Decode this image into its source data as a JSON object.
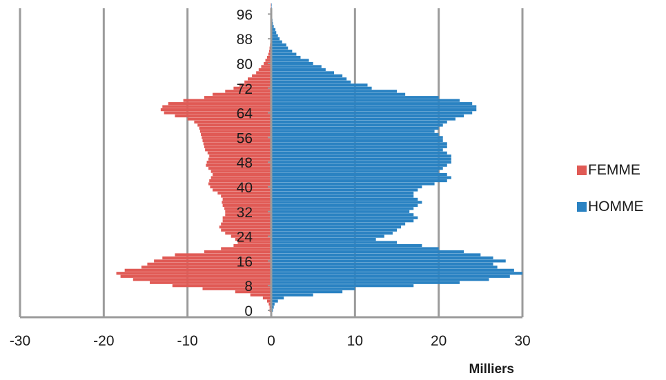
{
  "chart_data": {
    "type": "bar",
    "orientation": "horizontal",
    "layout": "population-pyramid",
    "x_unit_label": "Milliers",
    "xlim": [
      -30,
      30
    ],
    "x_ticks": [
      -30,
      -20,
      -10,
      0,
      10,
      20,
      30
    ],
    "x_tick_labels": [
      "-30",
      "-20",
      "-10",
      "0",
      "10",
      "20",
      "30"
    ],
    "y_tick_labels": [
      "0",
      "8",
      "16",
      "24",
      "32",
      "40",
      "48",
      "56",
      "64",
      "72",
      "80",
      "88",
      "96"
    ],
    "y_tick_ages": [
      0,
      8,
      16,
      24,
      32,
      40,
      48,
      56,
      64,
      72,
      80,
      88,
      96
    ],
    "ages": [
      0,
      1,
      2,
      3,
      4,
      5,
      6,
      7,
      8,
      9,
      10,
      11,
      12,
      13,
      14,
      15,
      16,
      17,
      18,
      19,
      20,
      21,
      22,
      23,
      24,
      25,
      26,
      27,
      28,
      29,
      30,
      31,
      32,
      33,
      34,
      35,
      36,
      37,
      38,
      39,
      40,
      41,
      42,
      43,
      44,
      45,
      46,
      47,
      48,
      49,
      50,
      51,
      52,
      53,
      54,
      55,
      56,
      57,
      58,
      59,
      60,
      61,
      62,
      63,
      64,
      65,
      66,
      67,
      68,
      69,
      70,
      71,
      72,
      73,
      74,
      75,
      76,
      77,
      78,
      79,
      80,
      81,
      82,
      83,
      84,
      85,
      86,
      87,
      88,
      89,
      90,
      91,
      92,
      93,
      94,
      95,
      96,
      97,
      98,
      99
    ],
    "legend_position": "right",
    "grid": "vertical-major",
    "series": [
      {
        "name": "FEMME",
        "color": "#E05A55",
        "values": [
          -0.2,
          -0.2,
          -0.3,
          -0.5,
          -1.0,
          -2.5,
          -4.3,
          -8.2,
          -11.8,
          -14.5,
          -16.5,
          -18.0,
          -18.5,
          -17.5,
          -15.5,
          -14.8,
          -14.0,
          -13.0,
          -11.5,
          -8.0,
          -6.0,
          -4.5,
          -4.0,
          -4.3,
          -4.8,
          -5.5,
          -6.0,
          -6.2,
          -6.0,
          -5.8,
          -5.8,
          -5.5,
          -5.5,
          -5.6,
          -5.8,
          -5.9,
          -5.8,
          -6.0,
          -6.4,
          -7.0,
          -7.3,
          -7.5,
          -7.4,
          -7.2,
          -7.0,
          -7.2,
          -7.5,
          -7.8,
          -7.7,
          -7.5,
          -7.4,
          -7.6,
          -7.9,
          -8.0,
          -8.1,
          -8.2,
          -8.3,
          -8.4,
          -8.5,
          -8.6,
          -8.8,
          -9.2,
          -10.0,
          -11.5,
          -12.8,
          -13.2,
          -13.0,
          -12.3,
          -10.5,
          -8.0,
          -7.0,
          -5.5,
          -4.5,
          -3.8,
          -3.2,
          -2.8,
          -2.3,
          -1.8,
          -1.5,
          -1.2,
          -0.9,
          -0.7,
          -0.5,
          -0.35,
          -0.25,
          -0.2,
          -0.15,
          -0.1,
          -0.1,
          -0.1,
          -0.05,
          -0.05,
          -0.05,
          -0.05,
          -0.05,
          -0.05,
          -0.05,
          -0.05,
          -0.05,
          -0.05
        ]
      },
      {
        "name": "HOMME",
        "color": "#2A82C2",
        "values": [
          0.2,
          0.3,
          0.4,
          0.8,
          1.5,
          5.0,
          8.5,
          10.0,
          17.0,
          22.5,
          26.0,
          28.5,
          30.0,
          29.0,
          27.0,
          26.5,
          28.0,
          26.5,
          25.0,
          23.0,
          20.0,
          18.0,
          15.0,
          12.5,
          13.5,
          14.5,
          15.0,
          15.5,
          16.0,
          17.0,
          17.5,
          17.0,
          16.5,
          17.0,
          17.5,
          18.0,
          17.5,
          17.0,
          17.0,
          17.5,
          18.0,
          19.5,
          21.0,
          21.5,
          21.0,
          20.0,
          20.5,
          21.0,
          21.5,
          21.5,
          21.5,
          21.0,
          20.5,
          21.0,
          21.0,
          20.5,
          20.5,
          20.0,
          19.5,
          20.0,
          20.5,
          21.0,
          22.0,
          23.0,
          24.0,
          24.5,
          24.5,
          24.0,
          22.5,
          20.0,
          16.0,
          15.0,
          12.0,
          11.5,
          9.5,
          9.0,
          8.5,
          7.5,
          6.5,
          6.0,
          5.0,
          4.5,
          3.5,
          3.0,
          2.5,
          2.0,
          1.8,
          1.3,
          1.0,
          0.8,
          0.6,
          0.5,
          0.3,
          0.2,
          0.15,
          0.1,
          0.1,
          0.05,
          0.05,
          0.05
        ]
      }
    ]
  }
}
